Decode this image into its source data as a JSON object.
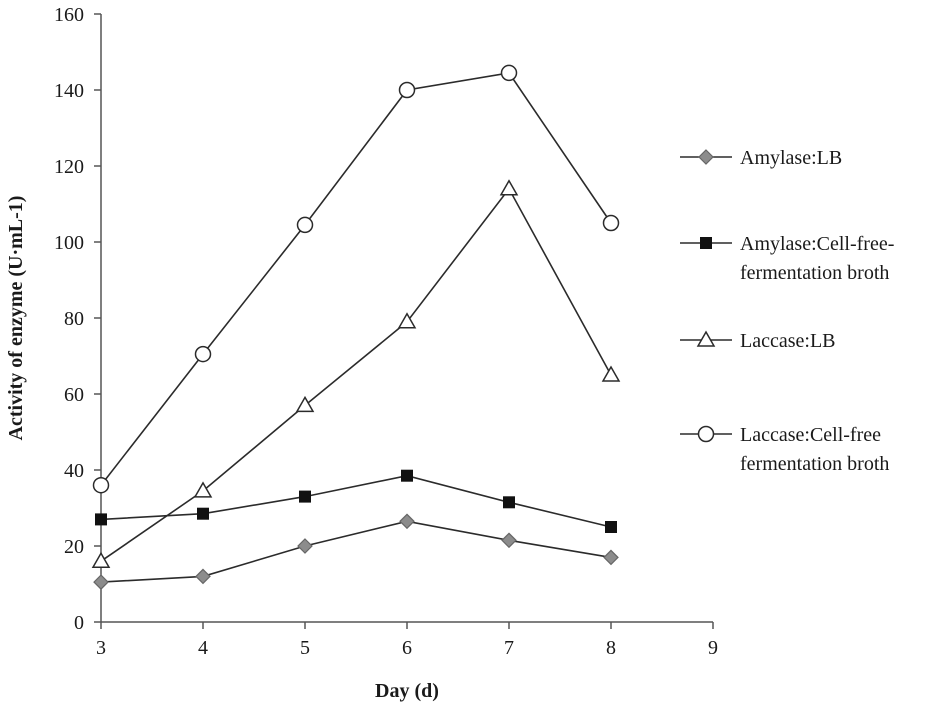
{
  "chart_data": {
    "type": "line",
    "xlabel": "Day (d)",
    "ylabel": "Activity of enzyme  (U·mL-1)",
    "xlim": [
      3,
      9
    ],
    "ylim": [
      0,
      160
    ],
    "x_ticks": [
      3,
      4,
      5,
      6,
      7,
      8,
      9
    ],
    "y_ticks": [
      0,
      20,
      40,
      60,
      80,
      100,
      120,
      140,
      160
    ],
    "grid": false,
    "legend_position": "right",
    "x": [
      3,
      4,
      5,
      6,
      7,
      8
    ],
    "series": [
      {
        "name_lines": [
          "Amylase:LB"
        ],
        "marker": "diamond",
        "values": [
          10.5,
          12,
          20,
          26.5,
          21.5,
          17
        ]
      },
      {
        "name_lines": [
          "Amylase:Cell-free-",
          "fermentation broth"
        ],
        "marker": "square",
        "values": [
          27,
          28.5,
          33,
          38.5,
          31.5,
          25
        ]
      },
      {
        "name_lines": [
          "Laccase:LB"
        ],
        "marker": "triangle-open",
        "values": [
          16,
          34.5,
          57,
          79,
          114,
          65
        ]
      },
      {
        "name_lines": [
          "Laccase:Cell-free",
          "fermentation broth"
        ],
        "marker": "circle-open",
        "values": [
          36,
          70.5,
          104.5,
          140,
          144.5,
          105
        ]
      }
    ],
    "colors": {
      "line": "#2b2b2b",
      "diamond_fill": "#8c8c8c",
      "square_fill": "#111111"
    }
  }
}
